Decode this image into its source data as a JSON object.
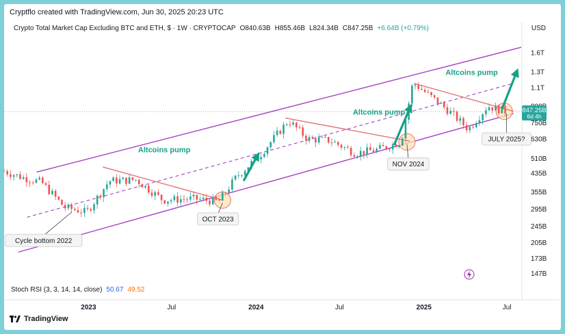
{
  "header": {
    "credit": "Cryptflo created with TradingView.com, Jun 30, 2025 20:23 UTC",
    "symbol": "Crypto Total Market Cap Excluding BTC and ETH, $ · 1W · CRYPTOCAP",
    "open": "O840.63B",
    "high": "H855.46B",
    "low": "L824.34B",
    "close": "C847.25B",
    "change": "+6.64B (+0.79%)",
    "currency": "USD"
  },
  "indicator": {
    "name": "Stoch RSI (3, 3, 14, 14, close)",
    "k": "50.67",
    "d": "49.52"
  },
  "price_tag": {
    "value": "847.25B",
    "countdown": "6d 4h"
  },
  "footer": {
    "brand": "TradingView"
  },
  "colors": {
    "up": "#26a69a",
    "down": "#ef5350",
    "channel": "#a43fc4",
    "trendline": "#e57373",
    "arrow": "#16a085",
    "circle_fill": "#fde3b3",
    "price_tag": "#26a69a"
  },
  "chart_data": {
    "type": "candlestick",
    "title": "Crypto Total Market Cap Excluding BTC and ETH",
    "y_scale": "log",
    "y_unit": "USD",
    "ylim": [
      140,
      1900
    ],
    "x_range": [
      "2022-07-01",
      "2025-08-01"
    ],
    "y_ticks": [
      "1.6T",
      "1.3T",
      "1.1T",
      "900B",
      "750B",
      "630B",
      "510B",
      "435B",
      "355B",
      "295B",
      "245B",
      "205B",
      "173B",
      "147B"
    ],
    "y_tick_values": [
      1600,
      1300,
      1100,
      900,
      750,
      630,
      510,
      435,
      355,
      295,
      245,
      205,
      173,
      147
    ],
    "x_ticks": [
      {
        "label": "2023",
        "date": "2023-01-01",
        "bold": true
      },
      {
        "label": "Jul",
        "date": "2023-07-01",
        "bold": false
      },
      {
        "label": "2024",
        "date": "2024-01-01",
        "bold": true
      },
      {
        "label": "Jul",
        "date": "2024-07-01",
        "bold": false
      },
      {
        "label": "2025",
        "date": "2025-01-01",
        "bold": true
      },
      {
        "label": "Jul",
        "date": "2025-07-01",
        "bold": false
      }
    ],
    "last_price": 847.25,
    "key_points": [
      {
        "date": "2022-07-01",
        "value": 445
      },
      {
        "date": "2022-08-10",
        "value": 415
      },
      {
        "date": "2022-09-20",
        "value": 395
      },
      {
        "date": "2022-11-10",
        "value": 300
      },
      {
        "date": "2022-12-28",
        "value": 285
      },
      {
        "date": "2023-02-15",
        "value": 400
      },
      {
        "date": "2023-04-15",
        "value": 405
      },
      {
        "date": "2023-06-12",
        "value": 325
      },
      {
        "date": "2023-08-15",
        "value": 330
      },
      {
        "date": "2023-10-12",
        "value": 320
      },
      {
        "date": "2023-11-20",
        "value": 420
      },
      {
        "date": "2024-01-10",
        "value": 530
      },
      {
        "date": "2024-03-12",
        "value": 770
      },
      {
        "date": "2024-04-22",
        "value": 630
      },
      {
        "date": "2024-06-10",
        "value": 620
      },
      {
        "date": "2024-08-05",
        "value": 540
      },
      {
        "date": "2024-09-20",
        "value": 560
      },
      {
        "date": "2024-11-12",
        "value": 610
      },
      {
        "date": "2024-12-08",
        "value": 1160
      },
      {
        "date": "2025-01-15",
        "value": 1000
      },
      {
        "date": "2025-02-25",
        "value": 850
      },
      {
        "date": "2025-04-08",
        "value": 700
      },
      {
        "date": "2025-05-20",
        "value": 900
      },
      {
        "date": "2025-06-30",
        "value": 847
      }
    ],
    "channel_upper": [
      {
        "date": "2022-09-10",
        "value": 440
      },
      {
        "date": "2025-08-01",
        "value": 1700
      }
    ],
    "channel_mid": [
      {
        "date": "2022-08-20",
        "value": 270
      },
      {
        "date": "2025-07-15",
        "value": 1150
      }
    ],
    "channel_lower": [
      {
        "date": "2022-08-01",
        "value": 185
      },
      {
        "date": "2025-07-15",
        "value": 830
      }
    ],
    "trendlines": [
      [
        {
          "date": "2023-02-01",
          "value": 465
        },
        {
          "date": "2023-10-20",
          "value": 325
        }
      ],
      [
        {
          "date": "2024-03-05",
          "value": 790
        },
        {
          "date": "2024-12-01",
          "value": 615
        }
      ],
      [
        {
          "date": "2024-12-10",
          "value": 1150
        },
        {
          "date": "2025-07-15",
          "value": 850
        }
      ]
    ],
    "circles": [
      {
        "date": "2023-10-20",
        "value": 325
      },
      {
        "date": "2024-11-25",
        "value": 610
      },
      {
        "date": "2025-06-25",
        "value": 850
      }
    ],
    "arrows": [
      {
        "from": {
          "date": "2023-12-05",
          "value": 400
        },
        "to": {
          "date": "2024-01-08",
          "value": 545
        }
      },
      {
        "from": {
          "date": "2024-10-28",
          "value": 590
        },
        "to": {
          "date": "2024-12-05",
          "value": 920
        }
      },
      {
        "from": {
          "date": "2025-06-20",
          "value": 870
        },
        "to": {
          "date": "2025-07-25",
          "value": 1350
        }
      }
    ],
    "annotations": [
      {
        "text": "Altcoins pump",
        "kind": "green",
        "date": "2023-06-15",
        "value": 545
      },
      {
        "text": "Altcoins pump",
        "kind": "green",
        "date": "2024-09-25",
        "value": 820
      },
      {
        "text": "Altcoins pump",
        "kind": "green",
        "date": "2025-04-15",
        "value": 1260
      },
      {
        "text": "Cycle bottom 2022",
        "kind": "box",
        "date": "2022-09-25",
        "value": 210,
        "pointer": {
          "date": "2022-11-25",
          "value": 285
        }
      },
      {
        "text": "OCT 2023",
        "kind": "box",
        "date": "2023-10-10",
        "value": 265,
        "pointer": {
          "date": "2023-10-20",
          "value": 315
        }
      },
      {
        "text": "NOV 2024",
        "kind": "box",
        "date": "2024-11-28",
        "value": 480,
        "pointer": {
          "date": "2024-11-25",
          "value": 595
        }
      },
      {
        "text": "JULY 2025?",
        "kind": "box",
        "date": "2025-06-30",
        "value": 630,
        "pointer": {
          "date": "2025-06-30",
          "value": 830
        }
      }
    ]
  }
}
